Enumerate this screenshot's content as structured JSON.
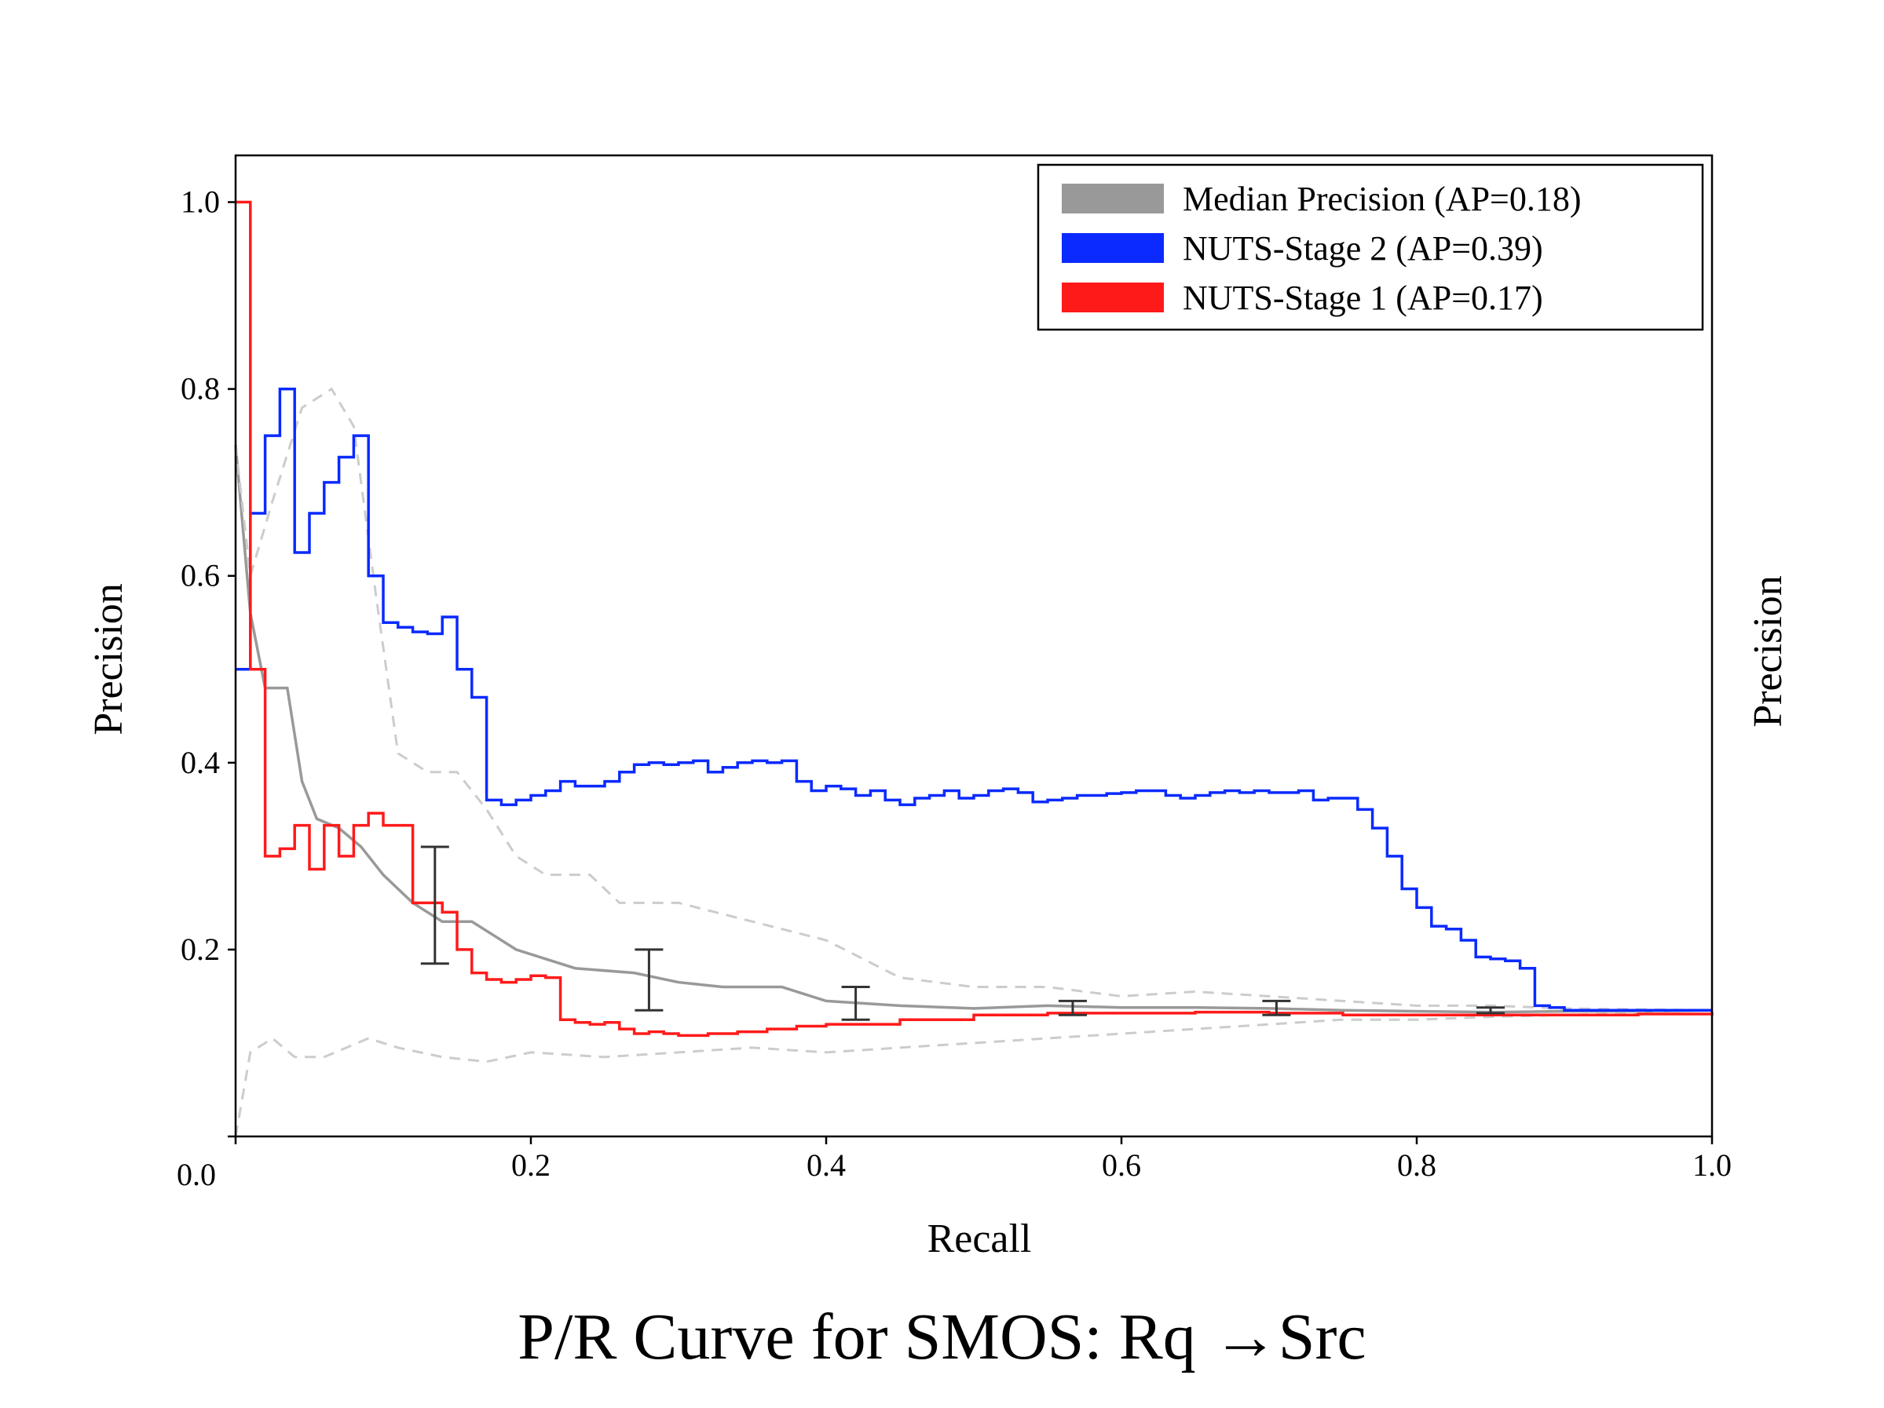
{
  "chart_data": {
    "type": "line",
    "title": "P/R Curve for SMOS: Rq →Src",
    "xlabel": "Recall",
    "ylabel": "Precision",
    "ylabel_right": "Precision",
    "xlim": [
      0.0,
      1.0
    ],
    "ylim": [
      0.0,
      1.05
    ],
    "x_ticks": [
      {
        "value": 0.0,
        "label": "0.0"
      },
      {
        "value": 0.2,
        "label": "0.2"
      },
      {
        "value": 0.4,
        "label": "0.4"
      },
      {
        "value": 0.6,
        "label": "0.6"
      },
      {
        "value": 0.8,
        "label": "0.8"
      },
      {
        "value": 1.0,
        "label": "1.0"
      }
    ],
    "y_ticks": [
      {
        "value": 0.2,
        "label": "0.2"
      },
      {
        "value": 0.4,
        "label": "0.4"
      },
      {
        "value": 0.6,
        "label": "0.6"
      },
      {
        "value": 0.8,
        "label": "0.8"
      },
      {
        "value": 1.0,
        "label": "1.0"
      }
    ],
    "grid": false,
    "legend_position": "top-right",
    "legend": [
      {
        "label": "Median Precision (AP=0.18)",
        "color": "#999999"
      },
      {
        "label": "NUTS-Stage 2 (AP=0.39)",
        "color": "#0a2aff"
      },
      {
        "label": "NUTS-Stage 1 (AP=0.17)",
        "color": "#ff1a1a"
      }
    ],
    "series": [
      {
        "name": "Median Precision (AP=0.18)",
        "color": "#999999",
        "style": "solid",
        "x": [
          0.0,
          0.01,
          0.02,
          0.035,
          0.045,
          0.055,
          0.07,
          0.085,
          0.1,
          0.12,
          0.14,
          0.16,
          0.19,
          0.23,
          0.27,
          0.3,
          0.33,
          0.37,
          0.4,
          0.45,
          0.5,
          0.55,
          0.6,
          0.65,
          0.7,
          0.75,
          0.8,
          0.85,
          0.9,
          0.95,
          1.0
        ],
        "y": [
          0.74,
          0.56,
          0.48,
          0.48,
          0.38,
          0.34,
          0.33,
          0.31,
          0.28,
          0.25,
          0.23,
          0.23,
          0.2,
          0.18,
          0.175,
          0.165,
          0.16,
          0.16,
          0.145,
          0.14,
          0.137,
          0.14,
          0.138,
          0.138,
          0.137,
          0.135,
          0.134,
          0.133,
          0.134,
          0.134,
          0.135
        ]
      },
      {
        "name": "",
        "color": "#cccccc",
        "style": "dashed",
        "x": [
          0.0,
          0.01,
          0.025,
          0.045,
          0.065,
          0.08,
          0.095,
          0.11,
          0.13,
          0.15,
          0.17,
          0.19,
          0.21,
          0.24,
          0.26,
          0.3,
          0.35,
          0.4,
          0.45,
          0.5,
          0.55,
          0.6,
          0.65,
          0.7,
          0.75,
          0.8,
          0.85,
          0.9,
          0.95,
          1.0
        ],
        "y": [
          0.74,
          0.6,
          0.68,
          0.78,
          0.8,
          0.76,
          0.58,
          0.41,
          0.39,
          0.39,
          0.35,
          0.3,
          0.28,
          0.28,
          0.25,
          0.25,
          0.23,
          0.21,
          0.17,
          0.16,
          0.16,
          0.15,
          0.155,
          0.15,
          0.145,
          0.14,
          0.14,
          0.137,
          0.136,
          0.135
        ]
      },
      {
        "name": "",
        "color": "#cccccc",
        "style": "dashed",
        "x": [
          0.0,
          0.01,
          0.025,
          0.04,
          0.06,
          0.09,
          0.11,
          0.14,
          0.17,
          0.2,
          0.25,
          0.3,
          0.35,
          0.4,
          0.45,
          0.5,
          0.55,
          0.6,
          0.65,
          0.7,
          0.75,
          0.8,
          0.85,
          0.9,
          0.95,
          1.0
        ],
        "y": [
          0.0,
          0.09,
          0.105,
          0.085,
          0.085,
          0.105,
          0.095,
          0.085,
          0.08,
          0.09,
          0.085,
          0.09,
          0.095,
          0.09,
          0.095,
          0.1,
          0.105,
          0.11,
          0.115,
          0.12,
          0.125,
          0.125,
          0.128,
          0.13,
          0.132,
          0.135
        ]
      },
      {
        "name": "NUTS-Stage 2 (AP=0.39)",
        "color": "#0a2aff",
        "style": "step",
        "x": [
          0.0,
          0.01,
          0.02,
          0.03,
          0.04,
          0.05,
          0.06,
          0.07,
          0.08,
          0.09,
          0.1,
          0.11,
          0.12,
          0.13,
          0.14,
          0.15,
          0.16,
          0.17,
          0.18,
          0.19,
          0.2,
          0.21,
          0.22,
          0.23,
          0.24,
          0.25,
          0.26,
          0.27,
          0.28,
          0.29,
          0.3,
          0.31,
          0.32,
          0.33,
          0.34,
          0.35,
          0.36,
          0.37,
          0.38,
          0.39,
          0.4,
          0.41,
          0.42,
          0.43,
          0.44,
          0.45,
          0.46,
          0.47,
          0.48,
          0.49,
          0.5,
          0.51,
          0.52,
          0.53,
          0.54,
          0.55,
          0.56,
          0.57,
          0.58,
          0.59,
          0.6,
          0.61,
          0.62,
          0.63,
          0.64,
          0.65,
          0.66,
          0.67,
          0.68,
          0.69,
          0.7,
          0.71,
          0.72,
          0.73,
          0.74,
          0.75,
          0.76,
          0.77,
          0.78,
          0.79,
          0.8,
          0.81,
          0.82,
          0.83,
          0.84,
          0.85,
          0.86,
          0.87,
          0.88,
          0.89,
          0.9,
          0.91,
          0.92,
          0.93,
          0.94,
          0.95,
          0.96,
          0.97,
          0.98,
          0.99,
          1.0
        ],
        "y": [
          0.5,
          0.667,
          0.75,
          0.8,
          0.625,
          0.667,
          0.7,
          0.727,
          0.75,
          0.6,
          0.55,
          0.545,
          0.54,
          0.538,
          0.556,
          0.5,
          0.47,
          0.36,
          0.355,
          0.36,
          0.365,
          0.37,
          0.38,
          0.375,
          0.375,
          0.38,
          0.39,
          0.398,
          0.4,
          0.398,
          0.4,
          0.402,
          0.39,
          0.395,
          0.4,
          0.402,
          0.4,
          0.402,
          0.38,
          0.37,
          0.375,
          0.372,
          0.365,
          0.37,
          0.36,
          0.355,
          0.362,
          0.365,
          0.37,
          0.362,
          0.365,
          0.37,
          0.372,
          0.368,
          0.358,
          0.36,
          0.362,
          0.365,
          0.365,
          0.367,
          0.368,
          0.37,
          0.37,
          0.365,
          0.362,
          0.365,
          0.368,
          0.37,
          0.368,
          0.37,
          0.368,
          0.368,
          0.37,
          0.36,
          0.362,
          0.362,
          0.35,
          0.33,
          0.3,
          0.265,
          0.245,
          0.225,
          0.222,
          0.21,
          0.192,
          0.19,
          0.188,
          0.18,
          0.14,
          0.138,
          0.135,
          0.135,
          0.135,
          0.135,
          0.135,
          0.135,
          0.135,
          0.135,
          0.135,
          0.135,
          0.135
        ]
      },
      {
        "name": "NUTS-Stage 1 (AP=0.17)",
        "color": "#ff1a1a",
        "style": "step",
        "x": [
          0.0,
          0.01,
          0.02,
          0.03,
          0.04,
          0.05,
          0.06,
          0.07,
          0.08,
          0.09,
          0.1,
          0.11,
          0.12,
          0.13,
          0.14,
          0.15,
          0.16,
          0.17,
          0.18,
          0.19,
          0.2,
          0.21,
          0.22,
          0.23,
          0.24,
          0.25,
          0.26,
          0.27,
          0.28,
          0.29,
          0.3,
          0.32,
          0.34,
          0.36,
          0.38,
          0.4,
          0.45,
          0.5,
          0.55,
          0.6,
          0.65,
          0.7,
          0.75,
          0.8,
          0.85,
          0.9,
          0.95,
          1.0
        ],
        "y": [
          1.0,
          0.5,
          0.3,
          0.308,
          0.333,
          0.286,
          0.333,
          0.3,
          0.333,
          0.346,
          0.333,
          0.333,
          0.25,
          0.25,
          0.24,
          0.2,
          0.175,
          0.168,
          0.165,
          0.168,
          0.172,
          0.17,
          0.125,
          0.122,
          0.12,
          0.122,
          0.115,
          0.11,
          0.112,
          0.11,
          0.108,
          0.11,
          0.112,
          0.115,
          0.118,
          0.12,
          0.125,
          0.13,
          0.132,
          0.132,
          0.133,
          0.132,
          0.13,
          0.13,
          0.13,
          0.13,
          0.131,
          0.133
        ]
      }
    ],
    "error_bars": [
      {
        "x": 0.135,
        "low": 0.185,
        "high": 0.31
      },
      {
        "x": 0.28,
        "low": 0.135,
        "high": 0.2
      },
      {
        "x": 0.42,
        "low": 0.125,
        "high": 0.16
      },
      {
        "x": 0.567,
        "low": 0.13,
        "high": 0.145
      },
      {
        "x": 0.705,
        "low": 0.13,
        "high": 0.145
      },
      {
        "x": 0.85,
        "low": 0.132,
        "high": 0.138
      }
    ]
  }
}
